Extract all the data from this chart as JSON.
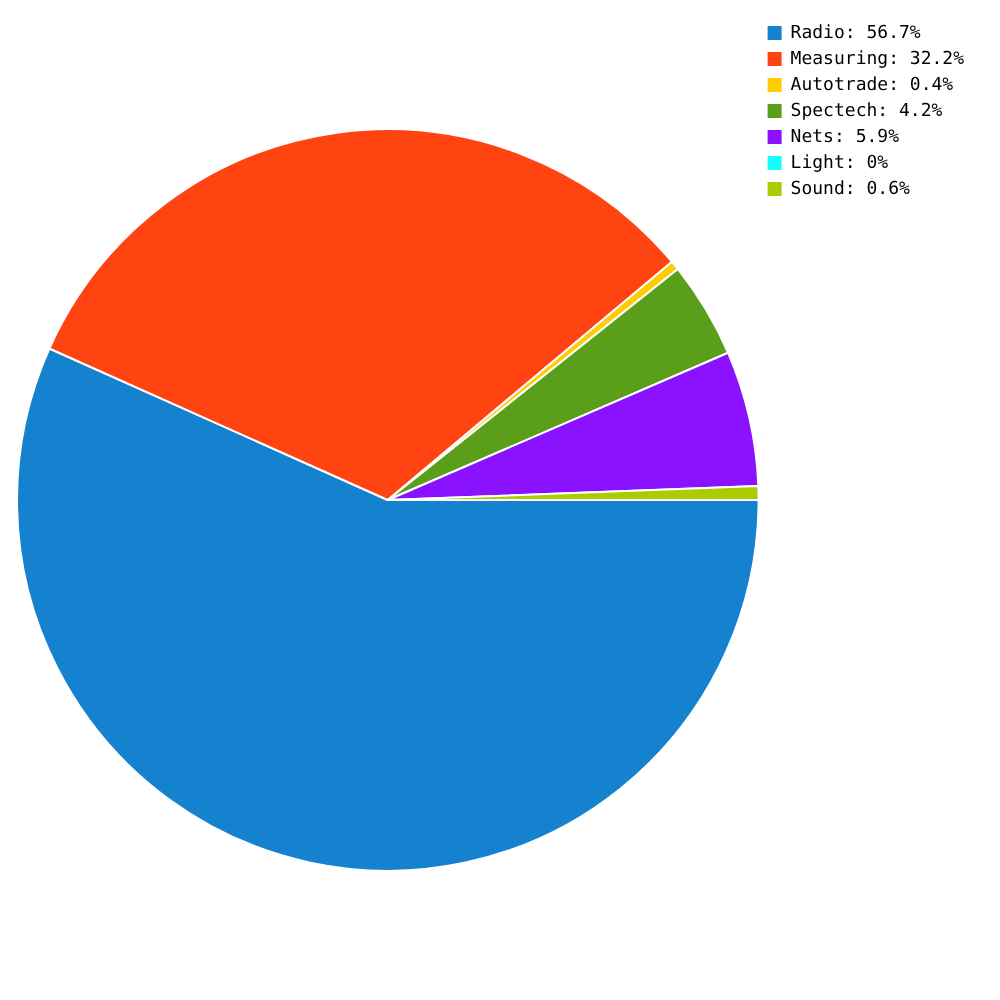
{
  "chart_data": {
    "type": "pie",
    "categories": [
      "Radio: 56.7%",
      "Measuring: 32.2%",
      "Autotrade: 0.4%",
      "Spectech: 4.2%",
      "Nets: 5.9%",
      "Light: 0%",
      "Sound: 0.6%"
    ],
    "values": [
      56.7,
      32.2,
      0.4,
      4.2,
      5.9,
      0,
      0.6
    ],
    "colors": [
      "#1582d0",
      "#ff4411",
      "#ffcc00",
      "#5a9e1a",
      "#8a12ff",
      "#11ffff",
      "#aacc00"
    ],
    "legend": "top right"
  }
}
